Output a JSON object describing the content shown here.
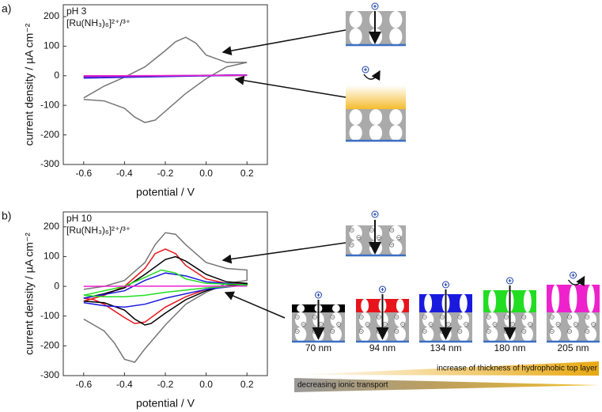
{
  "chart_data": [
    {
      "type": "line",
      "panel_label": "a)",
      "annotations": [
        "pH 3",
        "[Ru(NH₃)₆]²⁺/³⁺"
      ],
      "x_label": "potential / V",
      "y_label": "current density / µA cm⁻²",
      "xlim": [
        -0.7,
        0.3
      ],
      "xticks": [
        -0.6,
        -0.4,
        -0.2,
        {
          "value": 0,
          "label": "0.0"
        },
        0.2
      ],
      "ylim": [
        -300,
        240
      ],
      "yticks": [
        -300,
        -200,
        -100,
        0,
        100,
        200
      ],
      "series": [
        {
          "color": "#777777",
          "x": [
            -0.6,
            -0.5,
            -0.4,
            -0.3,
            -0.2,
            -0.15,
            -0.1,
            -0.05,
            0,
            0.1,
            0.2,
            0.1,
            0,
            -0.1,
            -0.2,
            -0.25,
            -0.3,
            -0.35,
            -0.4,
            -0.5,
            -0.6
          ],
          "values": [
            -75,
            -35,
            -5,
            30,
            85,
            115,
            130,
            110,
            70,
            45,
            45,
            30,
            -10,
            -60,
            -120,
            -150,
            -158,
            -140,
            -110,
            -85,
            -80
          ]
        },
        {
          "color": "#000000",
          "x": [
            -0.6,
            0.2,
            -0.6
          ],
          "values": [
            -3,
            1,
            -4
          ]
        },
        {
          "color": "#1a1adf",
          "x": [
            -0.6,
            0.2,
            -0.6
          ],
          "values": [
            -8,
            2,
            -6
          ]
        },
        {
          "color": "#7a22cc",
          "x": [
            -0.6,
            0.2,
            -0.6
          ],
          "values": [
            -5,
            3,
            -2
          ]
        },
        {
          "color": "#ee22cc",
          "x": [
            -0.6,
            0.2,
            -0.6
          ],
          "values": [
            0,
            1,
            0
          ]
        }
      ]
    },
    {
      "type": "line",
      "panel_label": "b)",
      "annotations": [
        "pH 10",
        "[Ru(NH₃)₆]²⁺/³⁺"
      ],
      "x_label": "potential / V",
      "y_label": "current density / µA cm⁻²",
      "xlim": [
        -0.7,
        0.3
      ],
      "xticks": [
        -0.6,
        -0.4,
        -0.2,
        {
          "value": 0,
          "label": "0.0"
        },
        0.2
      ],
      "ylim": [
        -300,
        250
      ],
      "yticks": [
        -300,
        -200,
        -100,
        0,
        100,
        200
      ],
      "series": [
        {
          "color": "#777777",
          "x": [
            -0.6,
            -0.5,
            -0.4,
            -0.3,
            -0.25,
            -0.2,
            -0.15,
            -0.1,
            0,
            0.1,
            0.2,
            0.2,
            0.1,
            0,
            -0.1,
            -0.2,
            -0.3,
            -0.35,
            -0.4,
            -0.45,
            -0.5,
            -0.6
          ],
          "values": [
            -10,
            0,
            20,
            80,
            140,
            180,
            175,
            140,
            80,
            60,
            55,
            20,
            10,
            -20,
            -60,
            -130,
            -210,
            -255,
            -245,
            -190,
            -150,
            -110
          ]
        },
        {
          "color": "#e8141b",
          "x": [
            -0.6,
            -0.5,
            -0.4,
            -0.3,
            -0.25,
            -0.2,
            -0.15,
            -0.1,
            0,
            0.1,
            0.2,
            0.2,
            0.1,
            0,
            -0.1,
            -0.2,
            -0.3,
            -0.35,
            -0.4,
            -0.5,
            -0.55,
            -0.6
          ],
          "values": [
            -50,
            -30,
            0,
            60,
            110,
            125,
            110,
            70,
            25,
            10,
            8,
            5,
            0,
            -10,
            -35,
            -70,
            -120,
            -125,
            -105,
            -60,
            -45,
            -40
          ]
        },
        {
          "color": "#000000",
          "x": [
            -0.6,
            -0.5,
            -0.4,
            -0.3,
            -0.2,
            -0.15,
            -0.1,
            0,
            0.1,
            0.2,
            0.2,
            0.1,
            0,
            -0.1,
            -0.2,
            -0.27,
            -0.3,
            -0.35,
            -0.4,
            -0.5,
            -0.6
          ],
          "values": [
            -40,
            -25,
            -5,
            40,
            90,
            100,
            85,
            40,
            15,
            10,
            8,
            2,
            -15,
            -45,
            -90,
            -125,
            -130,
            -110,
            -80,
            -55,
            -50
          ]
        },
        {
          "color": "#1a1adf",
          "x": [
            -0.6,
            -0.4,
            -0.3,
            -0.2,
            -0.1,
            0,
            0.2,
            0.2,
            0,
            -0.2,
            -0.3,
            -0.4,
            -0.5,
            -0.6
          ],
          "values": [
            -40,
            -15,
            20,
            45,
            35,
            15,
            5,
            5,
            -10,
            -40,
            -60,
            -70,
            -65,
            -55
          ]
        },
        {
          "color": "#22dd22",
          "x": [
            -0.6,
            -0.4,
            -0.3,
            -0.22,
            -0.15,
            -0.1,
            0,
            0.2,
            0.2,
            0,
            -0.2,
            -0.3,
            -0.4,
            -0.5,
            -0.6
          ],
          "values": [
            -30,
            0,
            30,
            55,
            45,
            25,
            10,
            5,
            3,
            -5,
            -20,
            -30,
            -35,
            -35,
            -30
          ]
        },
        {
          "color": "#ee22cc",
          "x": [
            -0.6,
            0.2,
            -0.6
          ],
          "values": [
            0,
            1,
            0
          ]
        }
      ]
    }
  ],
  "schematic": {
    "layers": [
      {
        "label": "70 nm",
        "color": "#000000"
      },
      {
        "label": "94 nm",
        "color": "#e8141b"
      },
      {
        "label": "134 nm",
        "color": "#1a1adf"
      },
      {
        "label": "180 nm",
        "color": "#22dd22"
      },
      {
        "label": "205 nm",
        "color": "#ee22cc"
      }
    ],
    "trend_labels": [
      "increase of thickness of hydrophobic top layer",
      "decreasing ionic transport"
    ]
  }
}
